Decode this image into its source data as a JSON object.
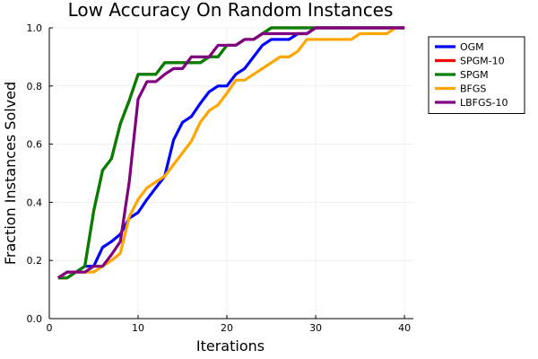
{
  "chart_data": {
    "type": "line",
    "title": "Low Accuracy On Random Instances",
    "xlabel": "Iterations",
    "ylabel": "Fraction Instances Solved",
    "xlim": [
      0,
      41
    ],
    "ylim": [
      0,
      1
    ],
    "xticks": [
      0,
      10,
      20,
      30,
      40
    ],
    "yticks": [
      0.0,
      0.2,
      0.4,
      0.6,
      0.8,
      1.0
    ],
    "xtick_labels": [
      "0",
      "10",
      "20",
      "30",
      "40"
    ],
    "ytick_labels": [
      "0.0",
      "0.2",
      "0.4",
      "0.6",
      "0.8",
      "1.0"
    ],
    "grid": true,
    "legend_position": "top-right outside",
    "series": [
      {
        "name": "OGM",
        "color": "#0000ff",
        "x": [
          1,
          2,
          3,
          4,
          5,
          6,
          7,
          8,
          9,
          10,
          11,
          12,
          13,
          14,
          15,
          16,
          17,
          18,
          19,
          20,
          21,
          22,
          23,
          24,
          25,
          26,
          27,
          28,
          29,
          30,
          31,
          32,
          33,
          34,
          35,
          36,
          37,
          38,
          39,
          40
        ],
        "y": [
          0.14,
          0.16,
          0.16,
          0.18,
          0.18,
          0.245,
          0.265,
          0.29,
          0.345,
          0.365,
          0.41,
          0.45,
          0.49,
          0.615,
          0.675,
          0.695,
          0.74,
          0.78,
          0.8,
          0.8,
          0.84,
          0.86,
          0.9,
          0.94,
          0.96,
          0.96,
          0.96,
          0.98,
          0.98,
          1.0,
          1.0,
          1.0,
          1.0,
          1.0,
          1.0,
          1.0,
          1.0,
          1.0,
          1.0,
          1.0
        ]
      },
      {
        "name": "SPGM-10",
        "color": "#ff0000",
        "x": [
          1,
          2,
          3,
          4,
          5,
          6,
          7,
          8,
          9,
          10,
          11,
          12,
          13,
          14,
          15,
          16,
          17,
          18,
          19,
          20,
          21,
          22,
          23,
          24,
          25,
          26,
          27,
          28,
          29,
          30,
          31,
          32,
          33,
          34,
          35,
          36,
          37,
          38,
          39,
          40
        ],
        "y": [
          0.14,
          0.14,
          0.16,
          0.18,
          0.37,
          0.51,
          0.55,
          0.67,
          0.75,
          0.84,
          0.84,
          0.84,
          0.88,
          0.88,
          0.88,
          0.88,
          0.88,
          0.9,
          0.9,
          0.94,
          0.94,
          0.96,
          0.96,
          0.98,
          1.0,
          1.0,
          1.0,
          1.0,
          1.0,
          1.0,
          1.0,
          1.0,
          1.0,
          1.0,
          1.0,
          1.0,
          1.0,
          1.0,
          1.0,
          1.0
        ]
      },
      {
        "name": "SPGM",
        "color": "#008000",
        "x": [
          1,
          2,
          3,
          4,
          5,
          6,
          7,
          8,
          9,
          10,
          11,
          12,
          13,
          14,
          15,
          16,
          17,
          18,
          19,
          20,
          21,
          22,
          23,
          24,
          25,
          26,
          27,
          28,
          29,
          30,
          31,
          32,
          33,
          34,
          35,
          36,
          37,
          38,
          39,
          40
        ],
        "y": [
          0.14,
          0.14,
          0.16,
          0.18,
          0.37,
          0.51,
          0.55,
          0.67,
          0.75,
          0.84,
          0.84,
          0.84,
          0.88,
          0.88,
          0.88,
          0.88,
          0.88,
          0.9,
          0.9,
          0.94,
          0.94,
          0.96,
          0.96,
          0.98,
          1.0,
          1.0,
          1.0,
          1.0,
          1.0,
          1.0,
          1.0,
          1.0,
          1.0,
          1.0,
          1.0,
          1.0,
          1.0,
          1.0,
          1.0,
          1.0
        ]
      },
      {
        "name": "BFGS",
        "color": "#ffa500",
        "x": [
          1,
          2,
          3,
          4,
          5,
          6,
          7,
          8,
          9,
          10,
          11,
          12,
          13,
          14,
          15,
          16,
          17,
          18,
          19,
          20,
          21,
          22,
          23,
          24,
          25,
          26,
          27,
          28,
          29,
          30,
          31,
          32,
          33,
          34,
          35,
          36,
          37,
          38,
          39,
          40
        ],
        "y": [
          0.14,
          0.16,
          0.16,
          0.16,
          0.16,
          0.18,
          0.2,
          0.225,
          0.35,
          0.41,
          0.45,
          0.47,
          0.49,
          0.53,
          0.57,
          0.61,
          0.675,
          0.715,
          0.735,
          0.775,
          0.82,
          0.82,
          0.84,
          0.86,
          0.88,
          0.9,
          0.9,
          0.92,
          0.96,
          0.96,
          0.96,
          0.96,
          0.96,
          0.96,
          0.98,
          0.98,
          0.98,
          0.98,
          1.0,
          1.0
        ]
      },
      {
        "name": "LBFGS-10",
        "color": "#800080",
        "x": [
          1,
          2,
          3,
          4,
          5,
          6,
          7,
          8,
          9,
          10,
          11,
          12,
          13,
          14,
          15,
          16,
          17,
          18,
          19,
          20,
          21,
          22,
          23,
          24,
          25,
          26,
          27,
          28,
          29,
          30,
          31,
          32,
          33,
          34,
          35,
          36,
          37,
          38,
          39,
          40
        ],
        "y": [
          0.14,
          0.16,
          0.16,
          0.16,
          0.18,
          0.18,
          0.22,
          0.265,
          0.47,
          0.755,
          0.815,
          0.815,
          0.84,
          0.86,
          0.86,
          0.9,
          0.9,
          0.9,
          0.94,
          0.94,
          0.94,
          0.96,
          0.96,
          0.98,
          0.98,
          0.98,
          0.98,
          0.98,
          0.98,
          1.0,
          1.0,
          1.0,
          1.0,
          1.0,
          1.0,
          1.0,
          1.0,
          1.0,
          1.0,
          1.0
        ]
      }
    ]
  }
}
